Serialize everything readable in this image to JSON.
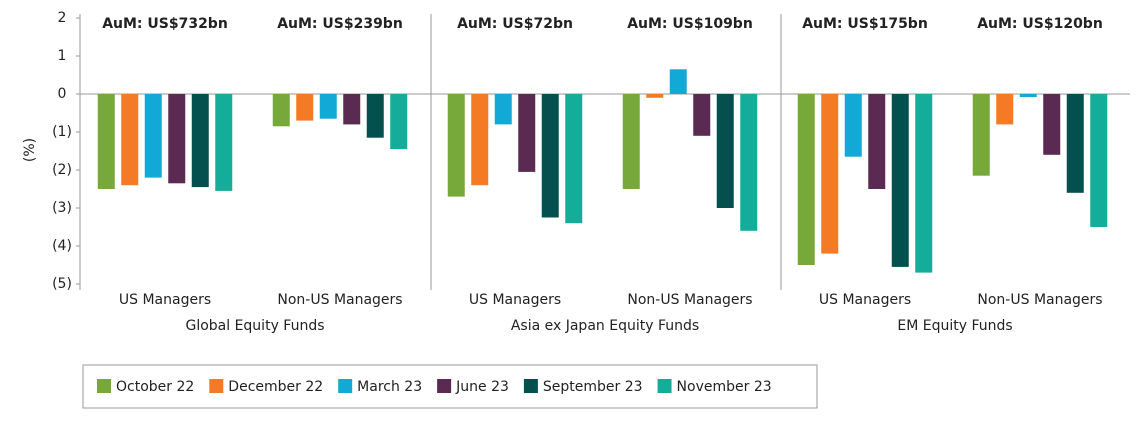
{
  "chart_data": {
    "type": "bar",
    "y_label": "(%)",
    "categories": [
      "US Managers",
      "Non-US Managers",
      "US Managers",
      "Non-US Managers",
      "US Managers",
      "Non-US Managers"
    ],
    "annotations": [
      "AuM: US$732bn",
      "AuM: US$239bn",
      "AuM: US$72bn",
      "AuM: US$109bn",
      "AuM: US$175bn",
      "AuM: US$120bn"
    ],
    "panels": [
      "Global Equity Funds",
      "Asia ex Japan Equity Funds",
      "EM Equity Funds"
    ],
    "ylim": [
      -5,
      2
    ],
    "yticks": [
      2,
      1,
      0,
      {
        "value": -1,
        "label": "(1)"
      },
      {
        "value": -2,
        "label": "(2)"
      },
      {
        "value": -3,
        "label": "(3)"
      },
      {
        "value": -4,
        "label": "(4)"
      },
      {
        "value": -5,
        "label": "(5)"
      }
    ],
    "series": [
      {
        "name": "October 22",
        "color": "#77a83a",
        "values": [
          -2.5,
          -0.85,
          -2.7,
          -2.5,
          -4.5,
          -2.15
        ]
      },
      {
        "name": "December 22",
        "color": "#f47a26",
        "values": [
          -2.4,
          -0.7,
          -2.4,
          -0.1,
          -4.2,
          -0.8
        ]
      },
      {
        "name": "March 23",
        "color": "#12a9d6",
        "values": [
          -2.2,
          -0.65,
          -0.8,
          0.65,
          -1.65,
          -0.08
        ]
      },
      {
        "name": "June 23",
        "color": "#5a2a52",
        "values": [
          -2.35,
          -0.8,
          -2.05,
          -1.1,
          -2.5,
          -1.6
        ]
      },
      {
        "name": "September 23",
        "color": "#04504f",
        "values": [
          -2.45,
          -1.15,
          -3.25,
          -3.0,
          -4.55,
          -2.6
        ]
      },
      {
        "name": "November 23",
        "color": "#14ad9a",
        "values": [
          -2.55,
          -1.45,
          -3.4,
          -3.6,
          -4.7,
          -3.5
        ]
      }
    ]
  }
}
